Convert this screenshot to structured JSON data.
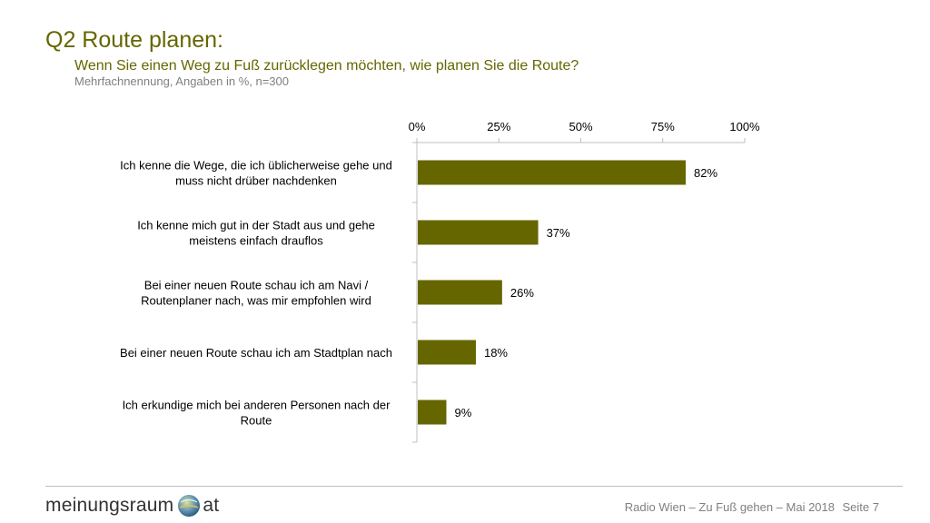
{
  "header": {
    "title": "Q2 Route planen:",
    "subtitle": "Wenn Sie einen Weg zu Fuß zurücklegen möchten, wie planen Sie die Route?",
    "note": "Mehrfachnennung, Angaben in %, n=300"
  },
  "chart_data": {
    "type": "bar",
    "orientation": "horizontal",
    "categories": [
      [
        "Ich kenne die Wege, die ich üblicherweise gehe und",
        "muss nicht drüber nachdenken"
      ],
      [
        "Ich kenne mich gut in der Stadt aus und gehe",
        "meistens einfach drauflos"
      ],
      [
        "Bei einer neuen Route schau ich am Navi /",
        "Routenplaner nach, was mir empfohlen wird"
      ],
      [
        "Bei einer neuen Route schau ich am Stadtplan nach"
      ],
      [
        "Ich erkundige mich bei anderen Personen nach der",
        "Route"
      ]
    ],
    "values": [
      82,
      37,
      26,
      18,
      9
    ],
    "value_labels": [
      "82%",
      "37%",
      "26%",
      "18%",
      "9%"
    ],
    "xlim": [
      0,
      100
    ],
    "ticks": [
      0,
      25,
      50,
      75,
      100
    ],
    "tick_labels": [
      "0%",
      "25%",
      "50%",
      "75%",
      "100%"
    ],
    "axis_position": "top",
    "grid": false,
    "bar_color": "#666600"
  },
  "footer": {
    "logo_left": "meinungsraum",
    "logo_right": "at",
    "text": "Radio Wien – Zu Fuß gehen – Mai 2018",
    "page": "Seite 7"
  }
}
